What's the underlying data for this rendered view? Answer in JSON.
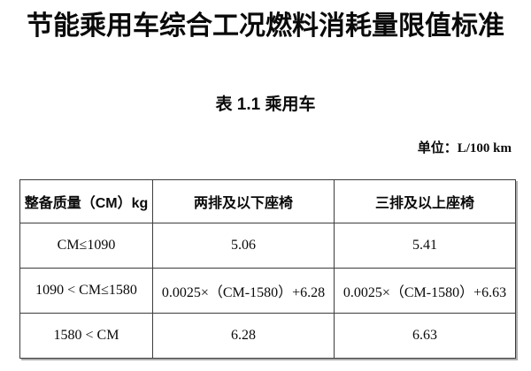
{
  "page": {
    "title": "节能乘用车综合工况燃料消耗量限值标准",
    "table_caption": "表 1.1 乘用车",
    "unit_label": "单位：L/100 km"
  },
  "table": {
    "headers": [
      "整备质量（CM）kg",
      "两排及以下座椅",
      "三排及以上座椅"
    ],
    "rows": [
      [
        "CM≤1090",
        "5.06",
        "5.41"
      ],
      [
        "1090 < CM≤1580",
        "0.0025×（CM-1580）+6.28",
        "0.0025×（CM-1580）+6.63"
      ],
      [
        "1580 < CM",
        "6.28",
        "6.63"
      ]
    ]
  }
}
